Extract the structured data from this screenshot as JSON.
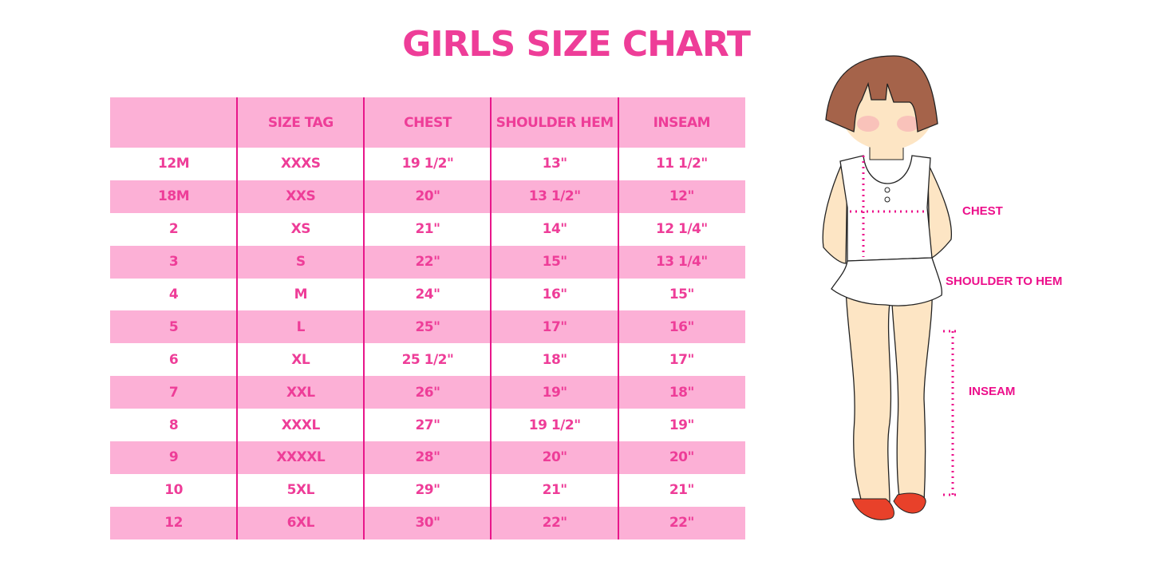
{
  "title": "GIRLS SIZE CHART",
  "colors": {
    "accent": "#ee3d98",
    "row_stripe": "#fcb0d6",
    "divider": "#e8168a"
  },
  "table": {
    "headers": [
      "",
      "SIZE TAG",
      "CHEST",
      "SHOULDER HEM",
      "INSEAM"
    ],
    "rows": [
      [
        "12M",
        "XXXS",
        "19 1/2\"",
        "13\"",
        "11 1/2\""
      ],
      [
        "18M",
        "XXS",
        "20\"",
        "13 1/2\"",
        "12\""
      ],
      [
        "2",
        "XS",
        "21\"",
        "14\"",
        "12 1/4\""
      ],
      [
        "3",
        "S",
        "22\"",
        "15\"",
        "13 1/4\""
      ],
      [
        "4",
        "M",
        "24\"",
        "16\"",
        "15\""
      ],
      [
        "5",
        "L",
        "25\"",
        "17\"",
        "16\""
      ],
      [
        "6",
        "XL",
        "25 1/2\"",
        "18\"",
        "17\""
      ],
      [
        "7",
        "XXL",
        "26\"",
        "19\"",
        "18\""
      ],
      [
        "8",
        "XXXL",
        "27\"",
        "19 1/2\"",
        "19\""
      ],
      [
        "9",
        "XXXXL",
        "28\"",
        "20\"",
        "20\""
      ],
      [
        "10",
        "5XL",
        "29\"",
        "21\"",
        "21\""
      ],
      [
        "12",
        "6XL",
        "30\"",
        "22\"",
        "22\""
      ]
    ]
  },
  "figure": {
    "labels": {
      "chest": "CHEST",
      "shoulder": "SHOULDER TO HEM",
      "inseam": "INSEAM"
    }
  }
}
